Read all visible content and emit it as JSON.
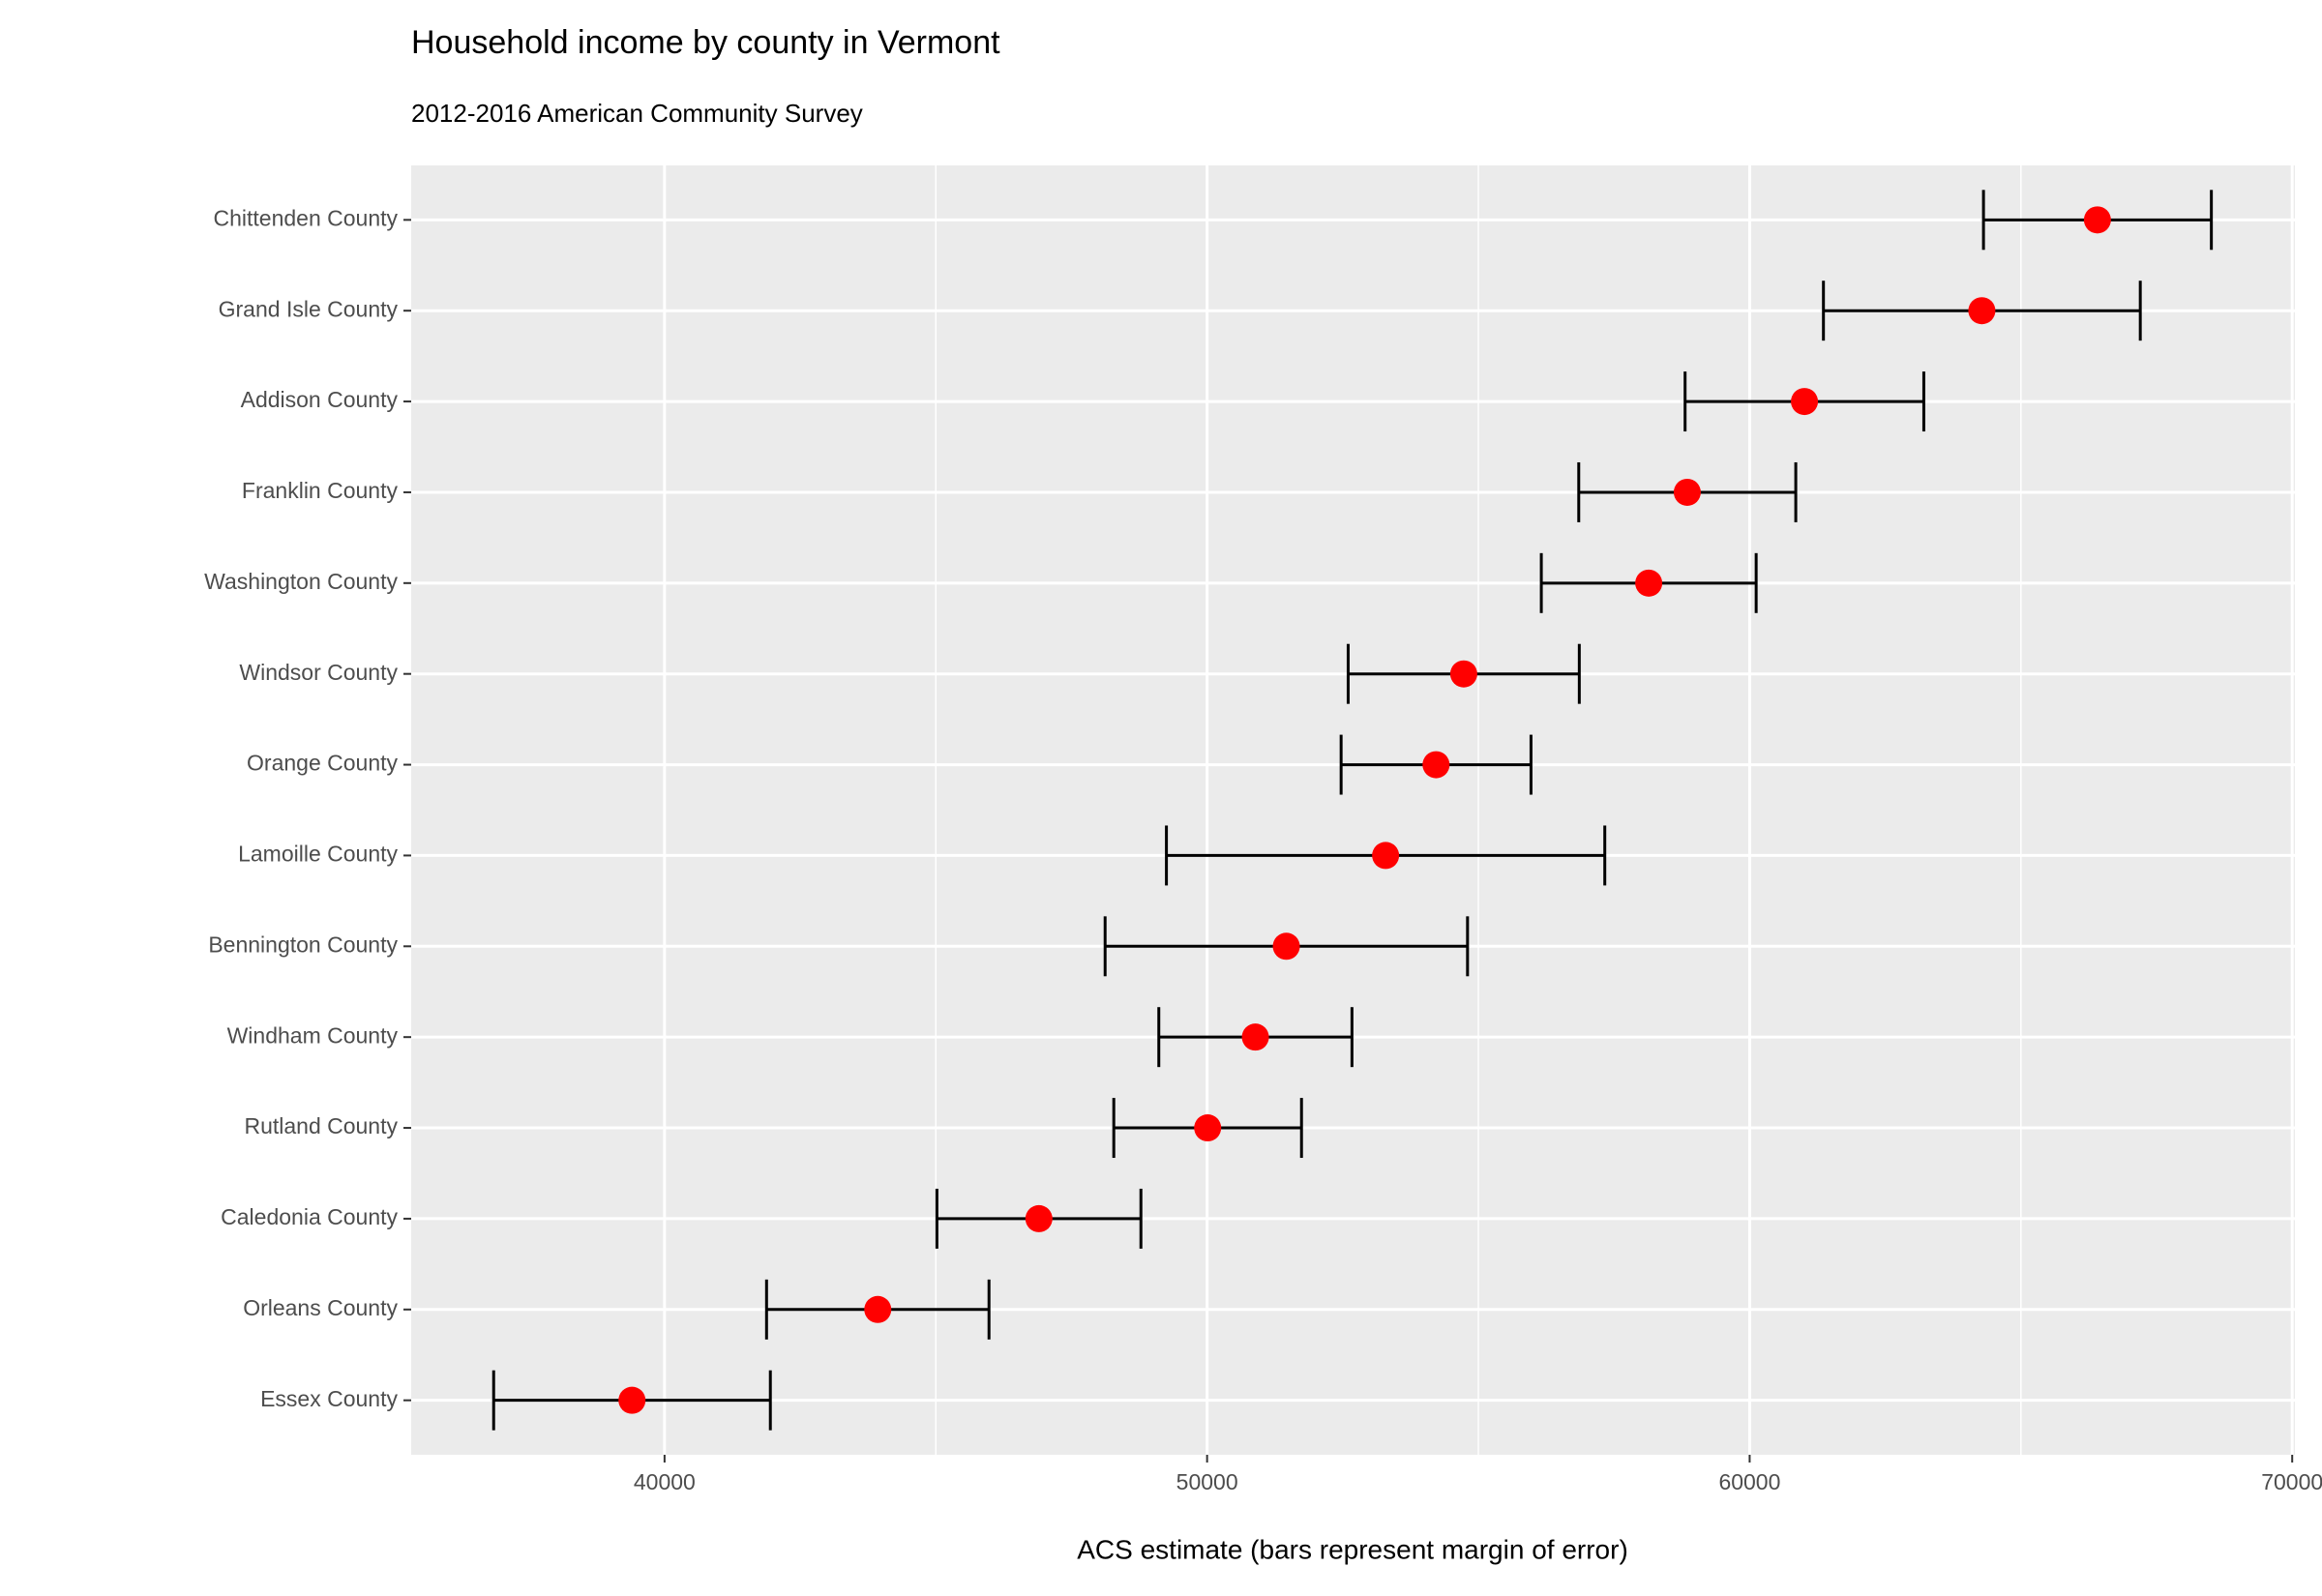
{
  "chart_data": {
    "type": "errorbar-dot",
    "title": "Household income by county in Vermont",
    "subtitle": "2012-2016 American Community Survey",
    "x_label": "ACS estimate (bars represent margin of error)",
    "categories": [
      "Chittenden County",
      "Grand Isle County",
      "Addison County",
      "Franklin County",
      "Washington County",
      "Windsor County",
      "Orange County",
      "Lamoille County",
      "Bennington County",
      "Windham County",
      "Rutland County",
      "Caledonia County",
      "Orleans County",
      "Essex County"
    ],
    "values": [
      66410,
      64280,
      61010,
      58850,
      58140,
      54730,
      54220,
      53290,
      51460,
      50890,
      50010,
      46900,
      43930,
      39400
    ],
    "moe": [
      2100,
      2920,
      2200,
      2000,
      1980,
      2130,
      1750,
      4040,
      3340,
      1780,
      1730,
      1880,
      2050,
      2550
    ],
    "color": "red",
    "errorbar_color": "#000000",
    "xlim": [
      35330,
      70050
    ],
    "xticks": [
      40000,
      50000,
      60000,
      70000
    ],
    "minor_xticks": [
      45000,
      55000,
      65000
    ],
    "grid": true
  }
}
